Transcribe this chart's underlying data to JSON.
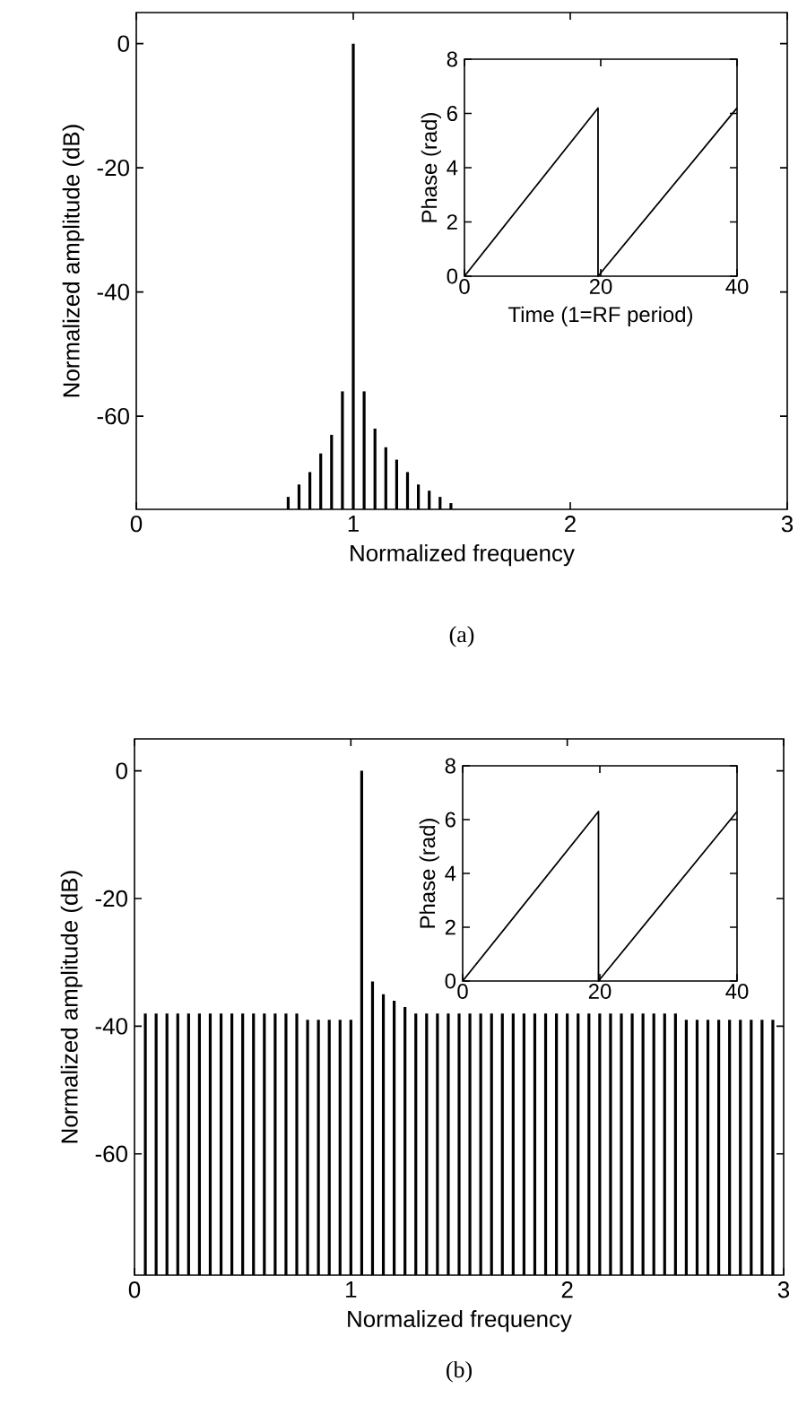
{
  "chart_data": [
    {
      "type": "bar",
      "xlabel": "Normalized frequency",
      "ylabel": "Normalized amplitude (dB)",
      "color": "#000000",
      "xlim": [
        0,
        3
      ],
      "ylim": [
        -75,
        5
      ],
      "xticks": [
        0,
        1,
        2,
        3
      ],
      "yticks": [
        -60,
        -40,
        -20,
        0
      ],
      "annotations": [
        "(a)"
      ],
      "x": [
        0.7,
        0.75,
        0.8,
        0.85,
        0.9,
        0.95,
        1.0,
        1.05,
        1.1,
        1.15,
        1.2,
        1.25,
        1.3,
        1.35,
        1.4,
        1.45
      ],
      "base": [
        -75,
        -75,
        -75,
        -75,
        -75,
        -75,
        -75,
        -75,
        -75,
        -75,
        -75,
        -75,
        -75,
        -75,
        -75,
        -75
      ],
      "values": [
        2,
        4,
        6,
        9,
        12,
        19,
        75,
        19,
        13,
        10,
        8,
        6,
        4,
        3,
        2,
        1
      ]
    },
    {
      "type": "line",
      "xlabel": "Time (1=RF period)",
      "ylabel": "Phase (rad)",
      "color": "#000000",
      "xlim": [
        0,
        40
      ],
      "ylim": [
        0,
        8
      ],
      "xticks": [
        0,
        20,
        40
      ],
      "yticks": [
        0,
        2,
        4,
        6,
        8
      ],
      "x": [
        0,
        19.6,
        19.6,
        40
      ],
      "values": [
        0,
        6.2,
        0,
        6.2
      ]
    },
    {
      "type": "bar",
      "xlabel": "Normalized frequency",
      "ylabel": "Normalized amplitude (dB)",
      "color": "#000000",
      "xlim": [
        0,
        3
      ],
      "ylim": [
        -79,
        5
      ],
      "xticks": [
        0,
        1,
        2,
        3
      ],
      "yticks": [
        -60,
        -40,
        -20,
        0
      ],
      "annotations": [
        "(b)"
      ],
      "x": [
        0.05,
        0.1,
        0.15,
        0.2,
        0.25,
        0.3,
        0.35,
        0.4,
        0.45,
        0.5,
        0.55,
        0.6,
        0.65,
        0.7,
        0.75,
        0.8,
        0.85,
        0.9,
        0.95,
        1.0,
        1.05,
        1.1,
        1.15,
        1.2,
        1.25,
        1.3,
        1.35,
        1.4,
        1.45,
        1.5,
        1.55,
        1.6,
        1.65,
        1.7,
        1.75,
        1.8,
        1.85,
        1.9,
        1.95,
        2.0,
        2.05,
        2.1,
        2.15,
        2.2,
        2.25,
        2.3,
        2.35,
        2.4,
        2.45,
        2.5,
        2.55,
        2.6,
        2.65,
        2.7,
        2.75,
        2.8,
        2.85,
        2.9,
        2.95
      ],
      "base": [
        -79,
        -79,
        -79,
        -79,
        -79,
        -79,
        -79,
        -79,
        -79,
        -79,
        -79,
        -79,
        -79,
        -79,
        -79,
        -79,
        -79,
        -79,
        -79,
        -79,
        -79,
        -79,
        -79,
        -79,
        -79,
        -79,
        -79,
        -79,
        -79,
        -79,
        -79,
        -79,
        -79,
        -79,
        -79,
        -79,
        -79,
        -79,
        -79,
        -79,
        -79,
        -79,
        -79,
        -79,
        -79,
        -79,
        -79,
        -79,
        -79,
        -79,
        -79,
        -79,
        -79,
        -79,
        -79,
        -79,
        -79,
        -79,
        -79
      ],
      "values": [
        41,
        41,
        41,
        41,
        41,
        41,
        41,
        41,
        41,
        41,
        41,
        41,
        41,
        41,
        41,
        40,
        40,
        40,
        40,
        40,
        79,
        46,
        44,
        43,
        42,
        41,
        41,
        41,
        41,
        41,
        41,
        41,
        41,
        41,
        41,
        41,
        41,
        41,
        41,
        41,
        41,
        41,
        41,
        41,
        41,
        41,
        41,
        41,
        41,
        41,
        40,
        40,
        40,
        40,
        40,
        40,
        40,
        40,
        40
      ]
    },
    {
      "type": "line",
      "ylabel": "Phase (rad)",
      "color": "#000000",
      "xlim": [
        0,
        40
      ],
      "ylim": [
        0,
        8
      ],
      "xticks": [
        0,
        20,
        40
      ],
      "yticks": [
        0,
        2,
        4,
        6,
        8
      ],
      "x": [
        0,
        19.8,
        19.8,
        40
      ],
      "values": [
        0,
        6.3,
        0,
        6.3
      ]
    }
  ]
}
